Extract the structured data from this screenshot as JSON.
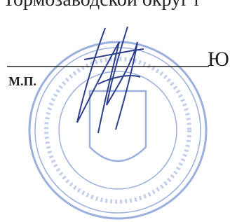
{
  "header": {
    "text": "Тормозаводской округ г"
  },
  "signature_line": {
    "suffix": "Ю"
  },
  "stamp_label": "М.П."
}
